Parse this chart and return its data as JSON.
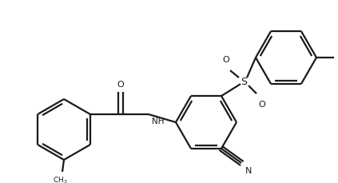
{
  "bg_color": "#ffffff",
  "line_color": "#1a1a1a",
  "lw": 1.6,
  "figsize": [
    4.23,
    2.29
  ],
  "dpi": 100,
  "xlim": [
    0.0,
    4.23
  ],
  "ylim": [
    0.0,
    2.29
  ]
}
